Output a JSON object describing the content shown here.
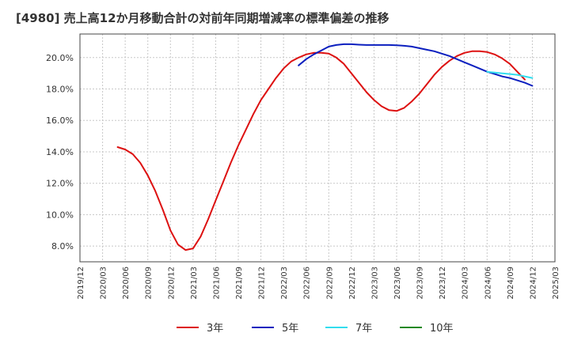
{
  "chart_data": {
    "type": "line",
    "title": "[4980]  売上高12か月移動合計の対前年同期増減率の標準偏差の推移",
    "xlabel": "",
    "ylabel": "",
    "ylim": [
      7.0,
      21.5
    ],
    "y_ticks": [
      "8.0%",
      "10.0%",
      "12.0%",
      "14.0%",
      "16.0%",
      "18.0%",
      "20.0%"
    ],
    "y_tick_values": [
      8,
      10,
      12,
      14,
      16,
      18,
      20
    ],
    "x_ticks": [
      "2019/12",
      "2020/03",
      "2020/06",
      "2020/09",
      "2020/12",
      "2021/03",
      "2021/06",
      "2021/09",
      "2021/12",
      "2022/03",
      "2022/06",
      "2022/09",
      "2022/12",
      "2023/03",
      "2023/06",
      "2023/09",
      "2023/12",
      "2024/03",
      "2024/06",
      "2024/09",
      "2024/12",
      "2025/03"
    ],
    "grid": true,
    "legend_position": "bottom",
    "series": [
      {
        "name": "3年",
        "color": "#dd1111",
        "points": [
          [
            "2020/05",
            14.3
          ],
          [
            "2020/06",
            14.15
          ],
          [
            "2020/07",
            13.85
          ],
          [
            "2020/08",
            13.3
          ],
          [
            "2020/09",
            12.5
          ],
          [
            "2020/10",
            11.5
          ],
          [
            "2020/11",
            10.3
          ],
          [
            "2020/12",
            9.0
          ],
          [
            "2021/01",
            8.1
          ],
          [
            "2021/02",
            7.75
          ],
          [
            "2021/03",
            7.85
          ],
          [
            "2021/04",
            8.6
          ],
          [
            "2021/05",
            9.7
          ],
          [
            "2021/06",
            10.9
          ],
          [
            "2021/07",
            12.1
          ],
          [
            "2021/08",
            13.3
          ],
          [
            "2021/09",
            14.4
          ],
          [
            "2021/10",
            15.4
          ],
          [
            "2021/11",
            16.4
          ],
          [
            "2021/12",
            17.3
          ],
          [
            "2022/01",
            18.0
          ],
          [
            "2022/02",
            18.7
          ],
          [
            "2022/03",
            19.3
          ],
          [
            "2022/04",
            19.75
          ],
          [
            "2022/05",
            20.0
          ],
          [
            "2022/06",
            20.2
          ],
          [
            "2022/07",
            20.3
          ],
          [
            "2022/08",
            20.3
          ],
          [
            "2022/09",
            20.25
          ],
          [
            "2022/10",
            20.0
          ],
          [
            "2022/11",
            19.6
          ],
          [
            "2022/12",
            19.0
          ],
          [
            "2023/01",
            18.4
          ],
          [
            "2023/02",
            17.8
          ],
          [
            "2023/03",
            17.3
          ],
          [
            "2023/04",
            16.9
          ],
          [
            "2023/05",
            16.65
          ],
          [
            "2023/06",
            16.6
          ],
          [
            "2023/07",
            16.8
          ],
          [
            "2023/08",
            17.2
          ],
          [
            "2023/09",
            17.7
          ],
          [
            "2023/10",
            18.3
          ],
          [
            "2023/11",
            18.9
          ],
          [
            "2023/12",
            19.4
          ],
          [
            "2024/01",
            19.8
          ],
          [
            "2024/02",
            20.1
          ],
          [
            "2024/03",
            20.3
          ],
          [
            "2024/04",
            20.4
          ],
          [
            "2024/05",
            20.4
          ],
          [
            "2024/06",
            20.35
          ],
          [
            "2024/07",
            20.2
          ],
          [
            "2024/08",
            19.95
          ],
          [
            "2024/09",
            19.6
          ],
          [
            "2024/10",
            19.1
          ],
          [
            "2024/11",
            18.6
          ]
        ]
      },
      {
        "name": "5年",
        "color": "#0b1fbf",
        "points": [
          [
            "2022/05",
            19.5
          ],
          [
            "2022/06",
            19.9
          ],
          [
            "2022/07",
            20.2
          ],
          [
            "2022/08",
            20.45
          ],
          [
            "2022/09",
            20.7
          ],
          [
            "2022/10",
            20.8
          ],
          [
            "2022/11",
            20.85
          ],
          [
            "2022/12",
            20.85
          ],
          [
            "2023/01",
            20.82
          ],
          [
            "2023/02",
            20.8
          ],
          [
            "2023/03",
            20.8
          ],
          [
            "2023/04",
            20.8
          ],
          [
            "2023/05",
            20.8
          ],
          [
            "2023/06",
            20.78
          ],
          [
            "2023/07",
            20.75
          ],
          [
            "2023/08",
            20.7
          ],
          [
            "2023/09",
            20.6
          ],
          [
            "2023/10",
            20.5
          ],
          [
            "2023/11",
            20.4
          ],
          [
            "2023/12",
            20.25
          ],
          [
            "2024/01",
            20.1
          ],
          [
            "2024/02",
            19.9
          ],
          [
            "2024/03",
            19.7
          ],
          [
            "2024/04",
            19.5
          ],
          [
            "2024/05",
            19.3
          ],
          [
            "2024/06",
            19.1
          ],
          [
            "2024/07",
            18.95
          ],
          [
            "2024/08",
            18.8
          ],
          [
            "2024/09",
            18.7
          ],
          [
            "2024/10",
            18.55
          ],
          [
            "2024/11",
            18.4
          ],
          [
            "2024/12",
            18.2
          ]
        ]
      },
      {
        "name": "7年",
        "color": "#33ddee",
        "points": [
          [
            "2024/06",
            19.1
          ],
          [
            "2024/07",
            19.05
          ],
          [
            "2024/08",
            19.0
          ],
          [
            "2024/09",
            18.95
          ],
          [
            "2024/10",
            18.9
          ],
          [
            "2024/11",
            18.8
          ],
          [
            "2024/12",
            18.7
          ]
        ]
      },
      {
        "name": "10年",
        "color": "#228822",
        "points": []
      }
    ]
  }
}
